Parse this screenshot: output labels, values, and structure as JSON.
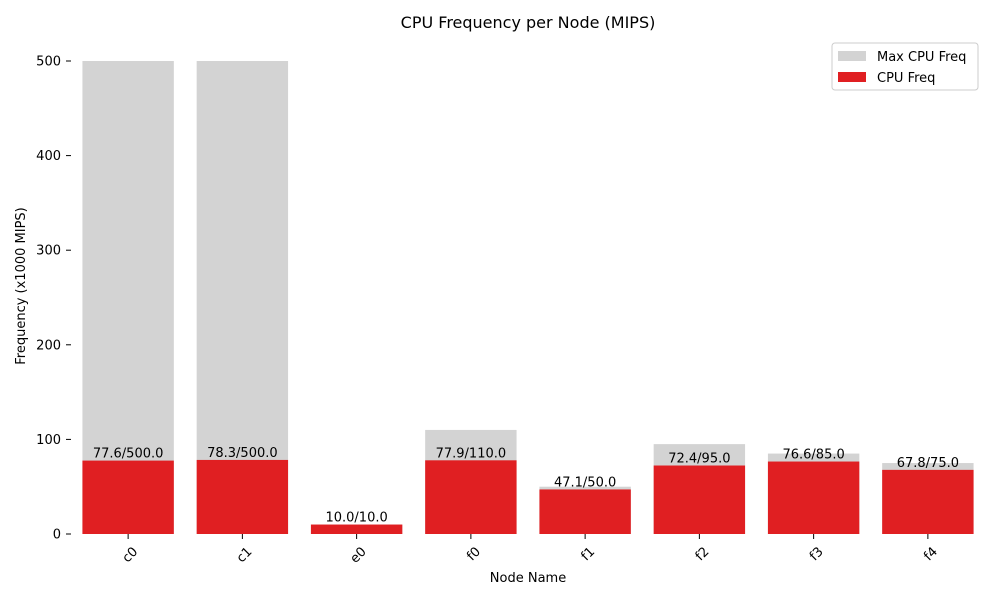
{
  "chart_data": {
    "type": "bar",
    "title": "CPU Frequency per Node (MIPS)",
    "xlabel": "Node Name",
    "ylabel": "Frequency (x1000 MIPS)",
    "categories": [
      "c0",
      "c1",
      "e0",
      "f0",
      "f1",
      "f2",
      "f3",
      "f4"
    ],
    "ylim": [
      0,
      500
    ],
    "yticks": [
      0,
      100,
      200,
      300,
      400,
      500
    ],
    "series": [
      {
        "name": "Max CPU Freq",
        "values": [
          500.0,
          500.0,
          10.0,
          110.0,
          50.0,
          95.0,
          85.0,
          75.0
        ],
        "color": "#d3d3d3"
      },
      {
        "name": "CPU Freq",
        "values": [
          77.6,
          78.3,
          10.0,
          77.9,
          47.1,
          72.4,
          76.6,
          67.8
        ],
        "color": "#e01f22"
      }
    ],
    "data_labels": [
      "77.6/500.0",
      "78.3/500.0",
      "10.0/10.0",
      "77.9/110.0",
      "47.1/50.0",
      "72.4/95.0",
      "76.6/85.0",
      "67.8/75.0"
    ],
    "legend_position": "top-right",
    "grid": false
  }
}
